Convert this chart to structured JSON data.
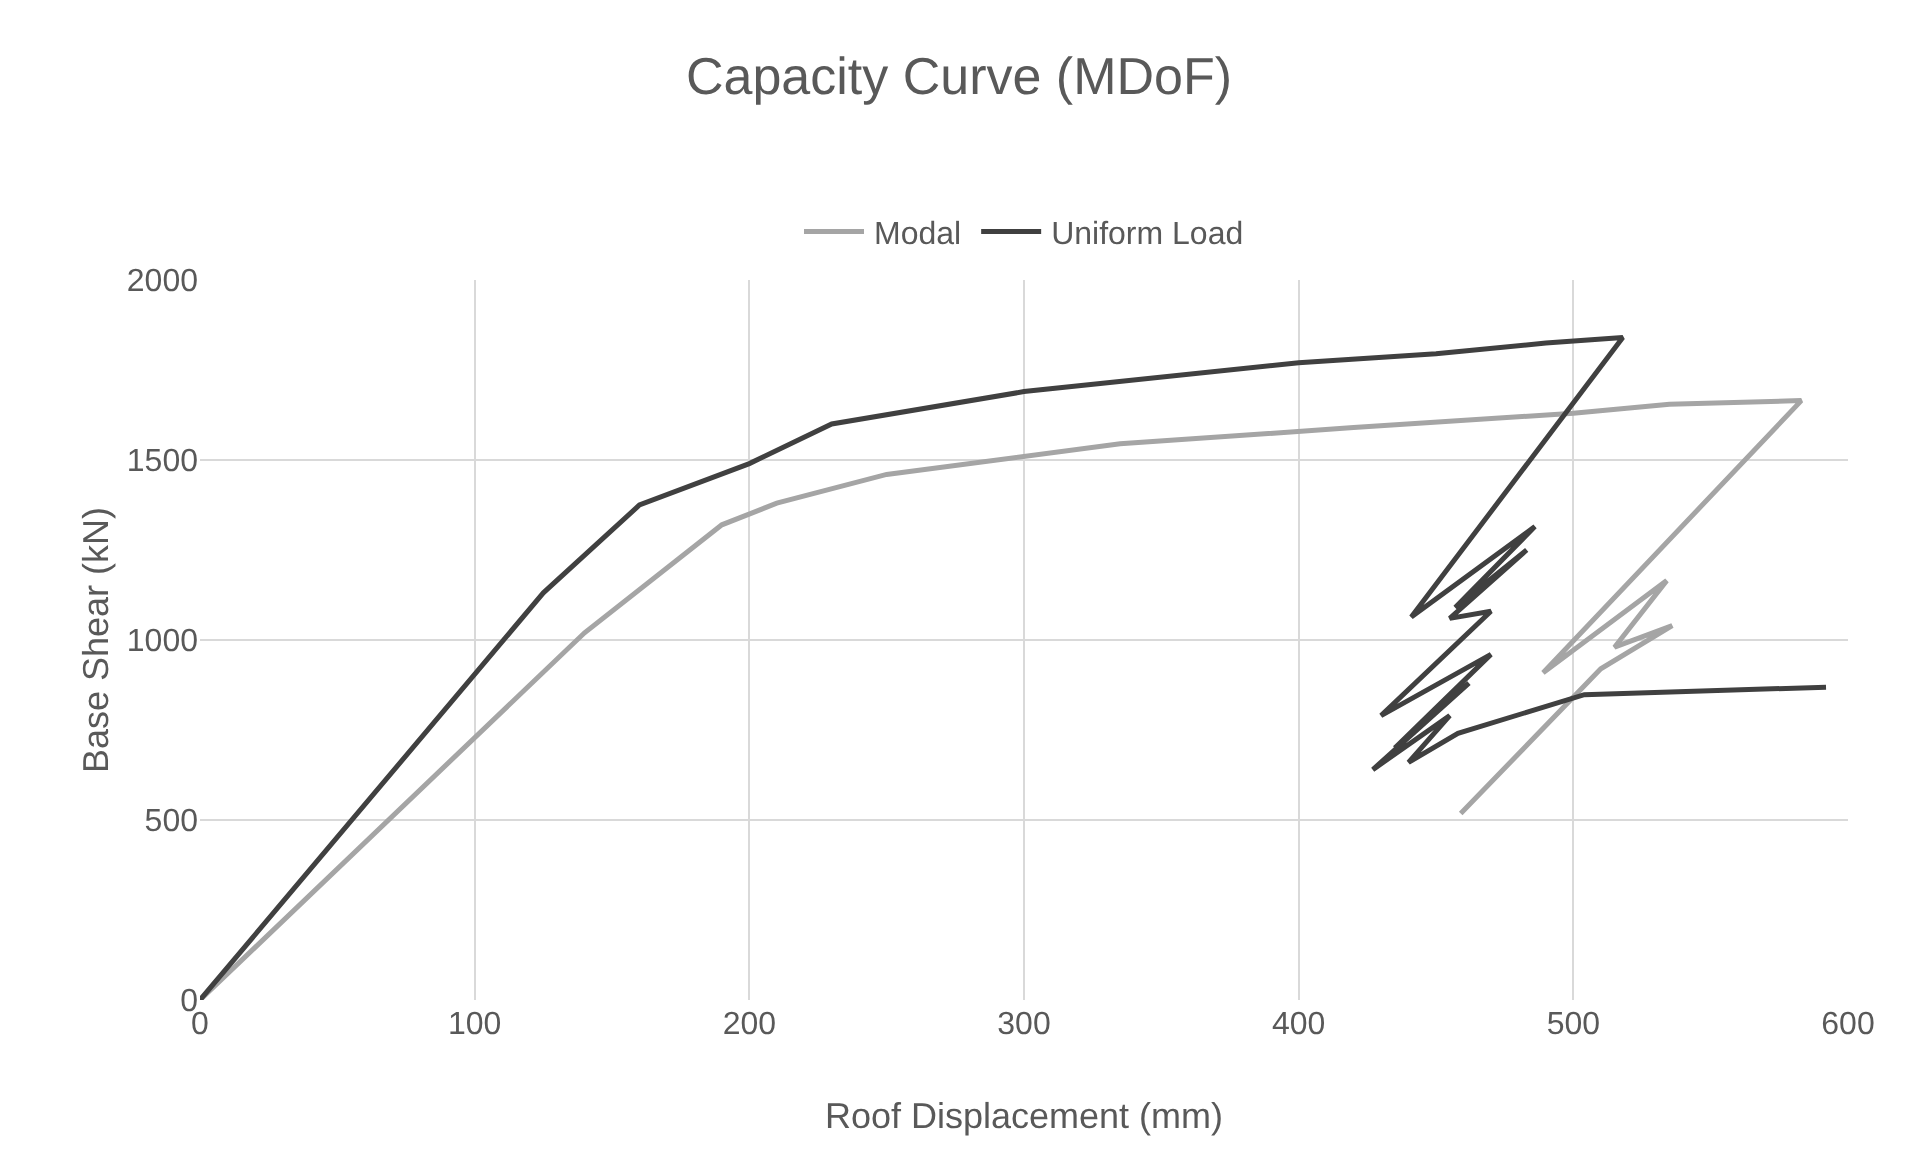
{
  "chart_data": {
    "type": "line",
    "title": "Capacity Curve (MDoF)",
    "xlabel": "Roof Displacement (mm)",
    "ylabel": "Base Shear (kN)",
    "series": [
      {
        "name": "Modal",
        "color": "#a5a5a5",
        "x": [
          0,
          140,
          190,
          210,
          250,
          335,
          420,
          500,
          535,
          583,
          489,
          534,
          515,
          536,
          510,
          459
        ],
        "values": [
          0,
          1020,
          1320,
          1380,
          1460,
          1545,
          1590,
          1630,
          1655,
          1665,
          909,
          1165,
          980,
          1040,
          920,
          518
        ]
      },
      {
        "name": "Uniform Load",
        "color": "#404040",
        "x": [
          0,
          125,
          160,
          200,
          230,
          300,
          400,
          450,
          490,
          518,
          441,
          486,
          457,
          483,
          455,
          470,
          430,
          470,
          435,
          462,
          427,
          455,
          440,
          458,
          504,
          592
        ],
        "values": [
          0,
          1131,
          1375,
          1490,
          1600,
          1690,
          1770,
          1795,
          1825,
          1840,
          1064,
          1315,
          1090,
          1250,
          1060,
          1080,
          790,
          960,
          700,
          880,
          640,
          790,
          660,
          741,
          848,
          869
        ]
      }
    ],
    "xlim": [
      0,
      600
    ],
    "xticks": [
      0,
      100,
      200,
      300,
      400,
      500,
      600
    ],
    "ylim": [
      0,
      2000
    ],
    "yticks": [
      0,
      500,
      1000,
      1500,
      2000
    ],
    "grid": true,
    "legend": "top",
    "marker": "none",
    "line_style": "solid"
  }
}
